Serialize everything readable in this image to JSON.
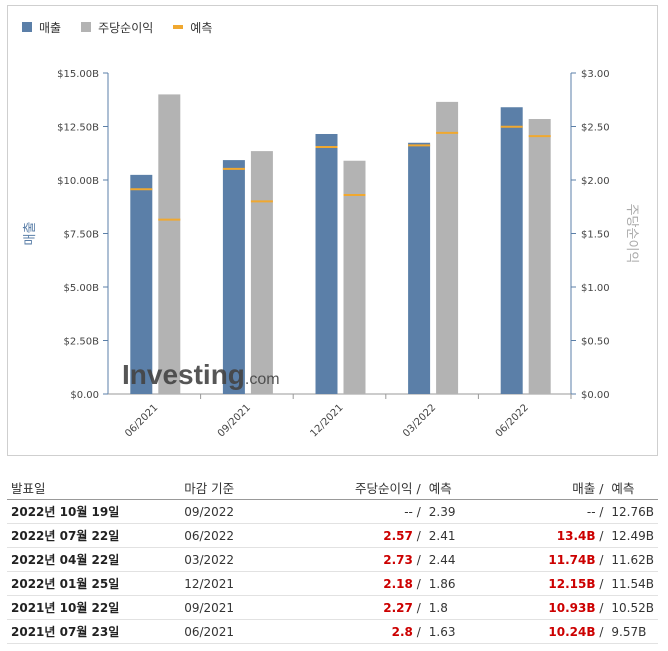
{
  "legend": [
    {
      "label": "매출",
      "color": "#5b7fa8"
    },
    {
      "label": "주당순이익",
      "color": "#b3b3b3"
    },
    {
      "label": "예측",
      "color": "#f0a830"
    }
  ],
  "watermark": {
    "brand": "Investing",
    "suffix": ".com"
  },
  "chart_data": {
    "type": "bar",
    "categories": [
      "06/2021",
      "09/2021",
      "12/2021",
      "03/2022",
      "06/2022"
    ],
    "y_left": {
      "label": "매출",
      "ticks": [
        "$0.00",
        "$2.50B",
        "$5.00B",
        "$7.50B",
        "$10.00B",
        "$12.50B",
        "$15.00B"
      ],
      "range": [
        0,
        15
      ]
    },
    "y_right": {
      "label": "주당순이익",
      "ticks": [
        "$0.00",
        "$0.50",
        "$1.00",
        "$1.50",
        "$2.00",
        "$2.50",
        "$3.00"
      ],
      "range": [
        0,
        3
      ]
    },
    "series": [
      {
        "name": "매출",
        "axis": "left",
        "values": [
          10.24,
          10.93,
          12.15,
          11.74,
          13.4
        ],
        "forecast": [
          9.57,
          10.52,
          11.54,
          11.62,
          12.49
        ]
      },
      {
        "name": "주당순이익",
        "axis": "right",
        "values": [
          2.8,
          2.27,
          2.18,
          2.73,
          2.57
        ],
        "forecast": [
          1.63,
          1.8,
          1.86,
          2.44,
          2.41
        ]
      }
    ],
    "grid": false,
    "legend_position": "top-left"
  },
  "table": {
    "headers": {
      "date": "발표일",
      "period": "마감 기준",
      "eps": "주당순이익",
      "eps_fc": "예측",
      "rev": "매출",
      "rev_fc": "예측"
    },
    "rows": [
      {
        "date": "2022년 10월 19일",
        "period": "09/2022",
        "eps": "--",
        "eps_fc": "2.39",
        "rev": "--",
        "rev_fc": "12.76B",
        "hl": false
      },
      {
        "date": "2022년 07월 22일",
        "period": "06/2022",
        "eps": "2.57",
        "eps_fc": "2.41",
        "rev": "13.4B",
        "rev_fc": "12.49B",
        "hl": true
      },
      {
        "date": "2022년 04월 22일",
        "period": "03/2022",
        "eps": "2.73",
        "eps_fc": "2.44",
        "rev": "11.74B",
        "rev_fc": "11.62B",
        "hl": true
      },
      {
        "date": "2022년 01월 25일",
        "period": "12/2021",
        "eps": "2.18",
        "eps_fc": "1.86",
        "rev": "12.15B",
        "rev_fc": "11.54B",
        "hl": true
      },
      {
        "date": "2021년 10월 22일",
        "period": "09/2021",
        "eps": "2.27",
        "eps_fc": "1.8",
        "rev": "10.93B",
        "rev_fc": "10.52B",
        "hl": true
      },
      {
        "date": "2021년 07월 23일",
        "period": "06/2021",
        "eps": "2.8",
        "eps_fc": "1.63",
        "rev": "10.24B",
        "rev_fc": "9.57B",
        "hl": true
      }
    ]
  }
}
